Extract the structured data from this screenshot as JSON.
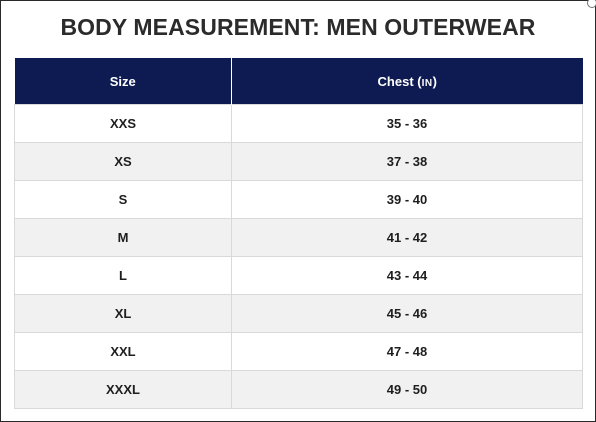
{
  "title": "BODY MEASUREMENT: MEN OUTERWEAR",
  "table": {
    "headers": {
      "size": "Size",
      "chest": "Chest",
      "chest_unit_open": "(",
      "chest_unit": "IN",
      "chest_unit_close": ")"
    },
    "rows": [
      {
        "size": "XXS",
        "chest": "35 - 36"
      },
      {
        "size": "XS",
        "chest": "37 - 38"
      },
      {
        "size": "S",
        "chest": "39 - 40"
      },
      {
        "size": "M",
        "chest": "41 - 42"
      },
      {
        "size": "L",
        "chest": "43 - 44"
      },
      {
        "size": "XL",
        "chest": "45 - 46"
      },
      {
        "size": "XXL",
        "chest": "47 - 48"
      },
      {
        "size": "XXXL",
        "chest": "49 - 50"
      }
    ]
  },
  "colors": {
    "header_bg": "#0d1b52",
    "header_text": "#ffffff",
    "alt_row_bg": "#f1f1f1",
    "title_text": "#2b2b2b"
  }
}
